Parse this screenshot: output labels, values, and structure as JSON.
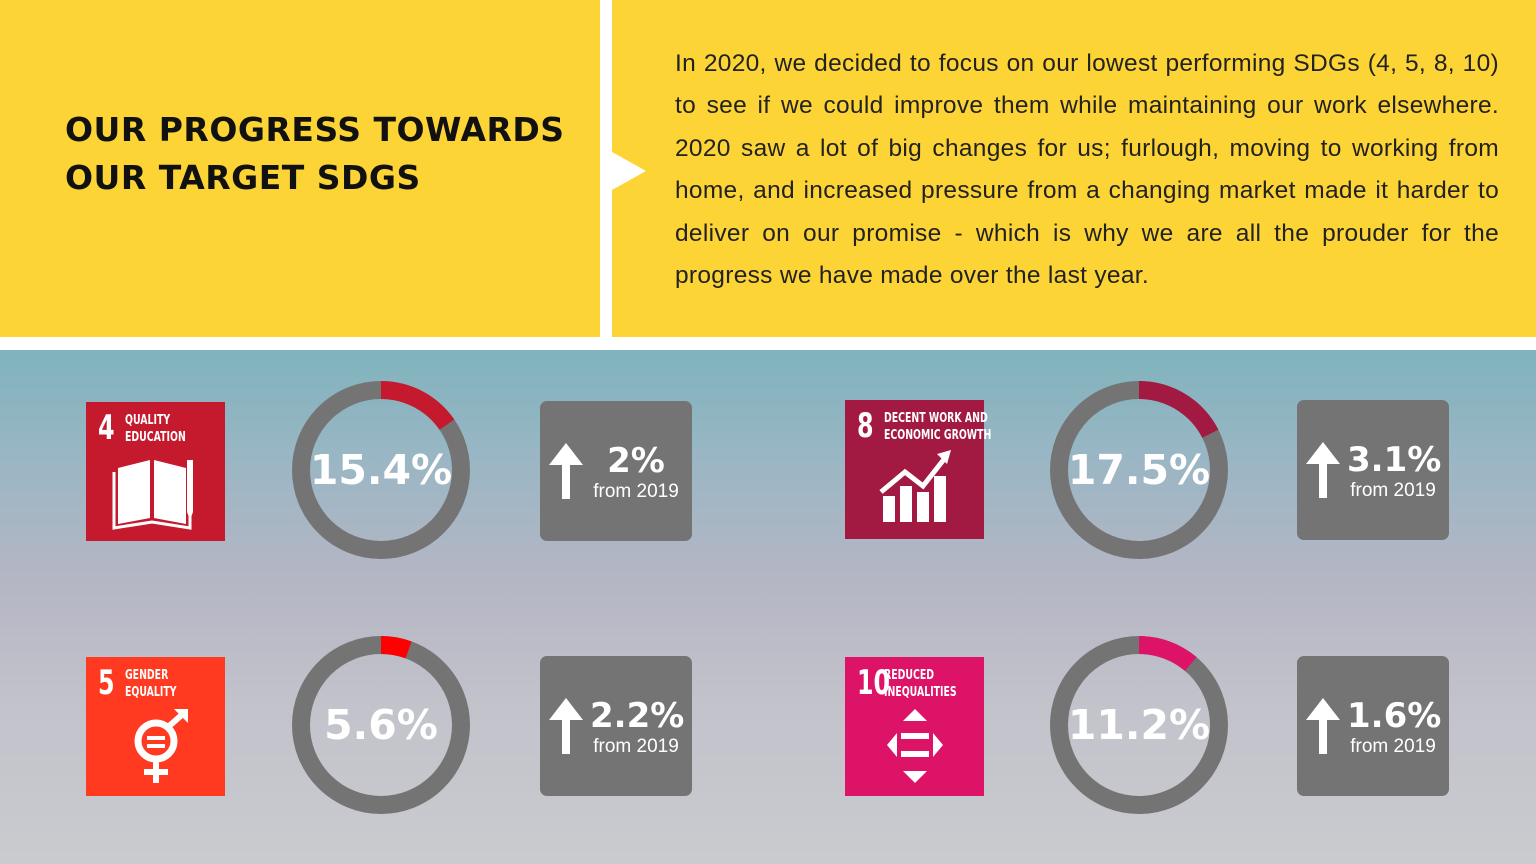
{
  "header": {
    "title_line1": "OUR PROGRESS TOWARDS",
    "title_line2": "OUR TARGET SDGS",
    "intro": "In 2020, we decided to focus on our lowest performing SDGs (4, 5, 8, 10) to see if we could improve them while maintaining our work elsewhere. 2020 saw a lot of big changes for us; furlough, moving to working from home, and increased pressure from a changing market made it harder to deliver on our promise - which is why we are all the prouder for the progress we have made over the last year."
  },
  "colors": {
    "panel": "#FDD435",
    "ring": "#747474"
  },
  "sdgs": [
    {
      "number": "4",
      "label1": "QUALITY",
      "label2": "EDUCATION",
      "icon": "book-pencil-icon",
      "color": "#C5192D",
      "arc_color": "#C5192D",
      "value": 15.4,
      "value_label": "15.4%",
      "change": "2%",
      "change_sub": "from 2019"
    },
    {
      "number": "8",
      "label1": "DECENT WORK AND",
      "label2": "ECONOMIC GROWTH",
      "icon": "growth-chart-icon",
      "color": "#A21942",
      "arc_color": "#A21942",
      "value": 17.5,
      "value_label": "17.5%",
      "change": "3.1%",
      "change_sub": "from 2019"
    },
    {
      "number": "5",
      "label1": "GENDER",
      "label2": "EQUALITY",
      "icon": "gender-equality-icon",
      "color": "#FF3A21",
      "arc_color": "#FF0000",
      "value": 5.6,
      "value_label": "5.6%",
      "change": "2.2%",
      "change_sub": "from 2019"
    },
    {
      "number": "10",
      "label1": "REDUCED",
      "label2": "INEQUALITIES",
      "icon": "reduced-inequalities-icon",
      "color": "#DD1367",
      "arc_color": "#DD1367",
      "value": 11.2,
      "value_label": "11.2%",
      "change": "1.6%",
      "change_sub": "from 2019"
    }
  ]
}
